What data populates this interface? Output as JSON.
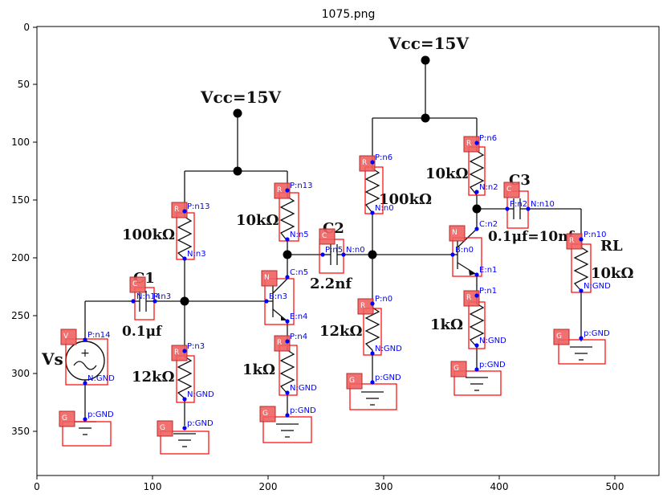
{
  "title": "1075.png",
  "axes": {
    "x_ticks": [
      "0",
      "100",
      "200",
      "300",
      "400",
      "500"
    ],
    "y_ticks": [
      "0",
      "50",
      "100",
      "150",
      "200",
      "250",
      "300",
      "350"
    ]
  },
  "schematic_labels": {
    "vcc_left": "Vcc=15V",
    "vcc_right": "Vcc=15V",
    "r_100k_left": "100kΩ",
    "r_10k_mid": "10kΩ",
    "c1": "C1",
    "c1_val": "0.1μf",
    "vs": "Vs",
    "r_12k_left": "12kΩ",
    "r_1k_mid": "1kΩ",
    "c2": "C2",
    "c2_val": "2.2nf",
    "r_100k_right": "100kΩ",
    "r_10k_right": "10kΩ",
    "r_12k_right": "12kΩ",
    "r_1k_right": "1kΩ",
    "c3": "C3",
    "c3_val": "0.1μf=10nf",
    "rl": "RL",
    "rl_val": "10kΩ"
  },
  "components": [
    {
      "tag": "V",
      "pins": [
        "P:n14",
        "N:GND"
      ]
    },
    {
      "tag": "G",
      "pins": [
        "p:GND"
      ]
    },
    {
      "tag": "C",
      "pins": [
        "N:n14",
        "P:n3"
      ]
    },
    {
      "tag": "R",
      "pins": [
        "P:n13",
        "N:n3"
      ]
    },
    {
      "tag": "R",
      "pins": [
        "P:n3",
        "N:GND"
      ]
    },
    {
      "tag": "G",
      "pins": [
        "p:GND"
      ]
    },
    {
      "tag": "R",
      "pins": [
        "P:n13",
        "N:n5"
      ]
    },
    {
      "tag": "N",
      "pins": [
        "C:n5",
        "B:n3",
        "E:n4"
      ]
    },
    {
      "tag": "R",
      "pins": [
        "P:n4",
        "N:GND"
      ]
    },
    {
      "tag": "G",
      "pins": [
        "p:GND"
      ]
    },
    {
      "tag": "C",
      "pins": [
        "P:n5",
        "N:n0"
      ]
    },
    {
      "tag": "R",
      "pins": [
        "P:n6",
        "N:n0"
      ]
    },
    {
      "tag": "R",
      "pins": [
        "P:n0",
        "N:GND"
      ]
    },
    {
      "tag": "G",
      "pins": [
        "p:GND"
      ]
    },
    {
      "tag": "R",
      "pins": [
        "P:n6",
        "N:n2"
      ]
    },
    {
      "tag": "N",
      "pins": [
        "C:n2",
        "B:n0",
        "E:n1"
      ]
    },
    {
      "tag": "R",
      "pins": [
        "P:n1",
        "N:GND"
      ]
    },
    {
      "tag": "G",
      "pins": [
        "p:GND"
      ]
    },
    {
      "tag": "C",
      "pins": [
        "P:n2",
        "N:n10"
      ]
    },
    {
      "tag": "R",
      "pins": [
        "P:n10",
        "N:GND"
      ]
    },
    {
      "tag": "G",
      "pins": [
        "p:GND"
      ]
    }
  ]
}
